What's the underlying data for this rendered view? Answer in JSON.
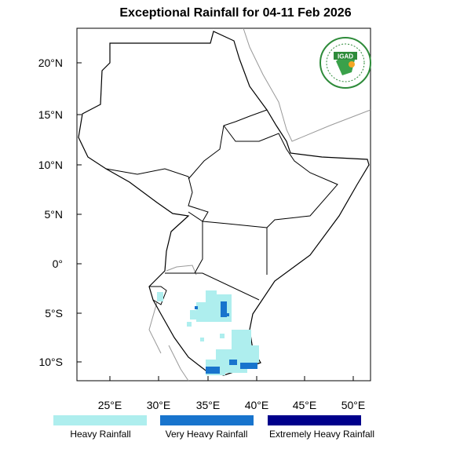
{
  "title": "Exceptional Rainfall for 04-11 Feb 2026",
  "map": {
    "lat_ticks": [
      "20°N",
      "15°N",
      "10°N",
      "5°N",
      "0°",
      "5°S",
      "10°S"
    ],
    "lon_ticks": [
      "25°E",
      "30°E",
      "35°E",
      "40°E",
      "45°E",
      "50°E"
    ],
    "extent": {
      "lon": [
        21.6,
        51.8
      ],
      "lat": [
        -11.9,
        23.5
      ]
    }
  },
  "logo": {
    "text": "IGAD"
  },
  "legend": [
    {
      "label": "Heavy Rainfall",
      "color": "#aeeeee"
    },
    {
      "label": "Very Heavy Rainfall",
      "color": "#1874cd"
    },
    {
      "label": "Extremely Heavy Rainfall",
      "color": "#00008b"
    }
  ]
}
